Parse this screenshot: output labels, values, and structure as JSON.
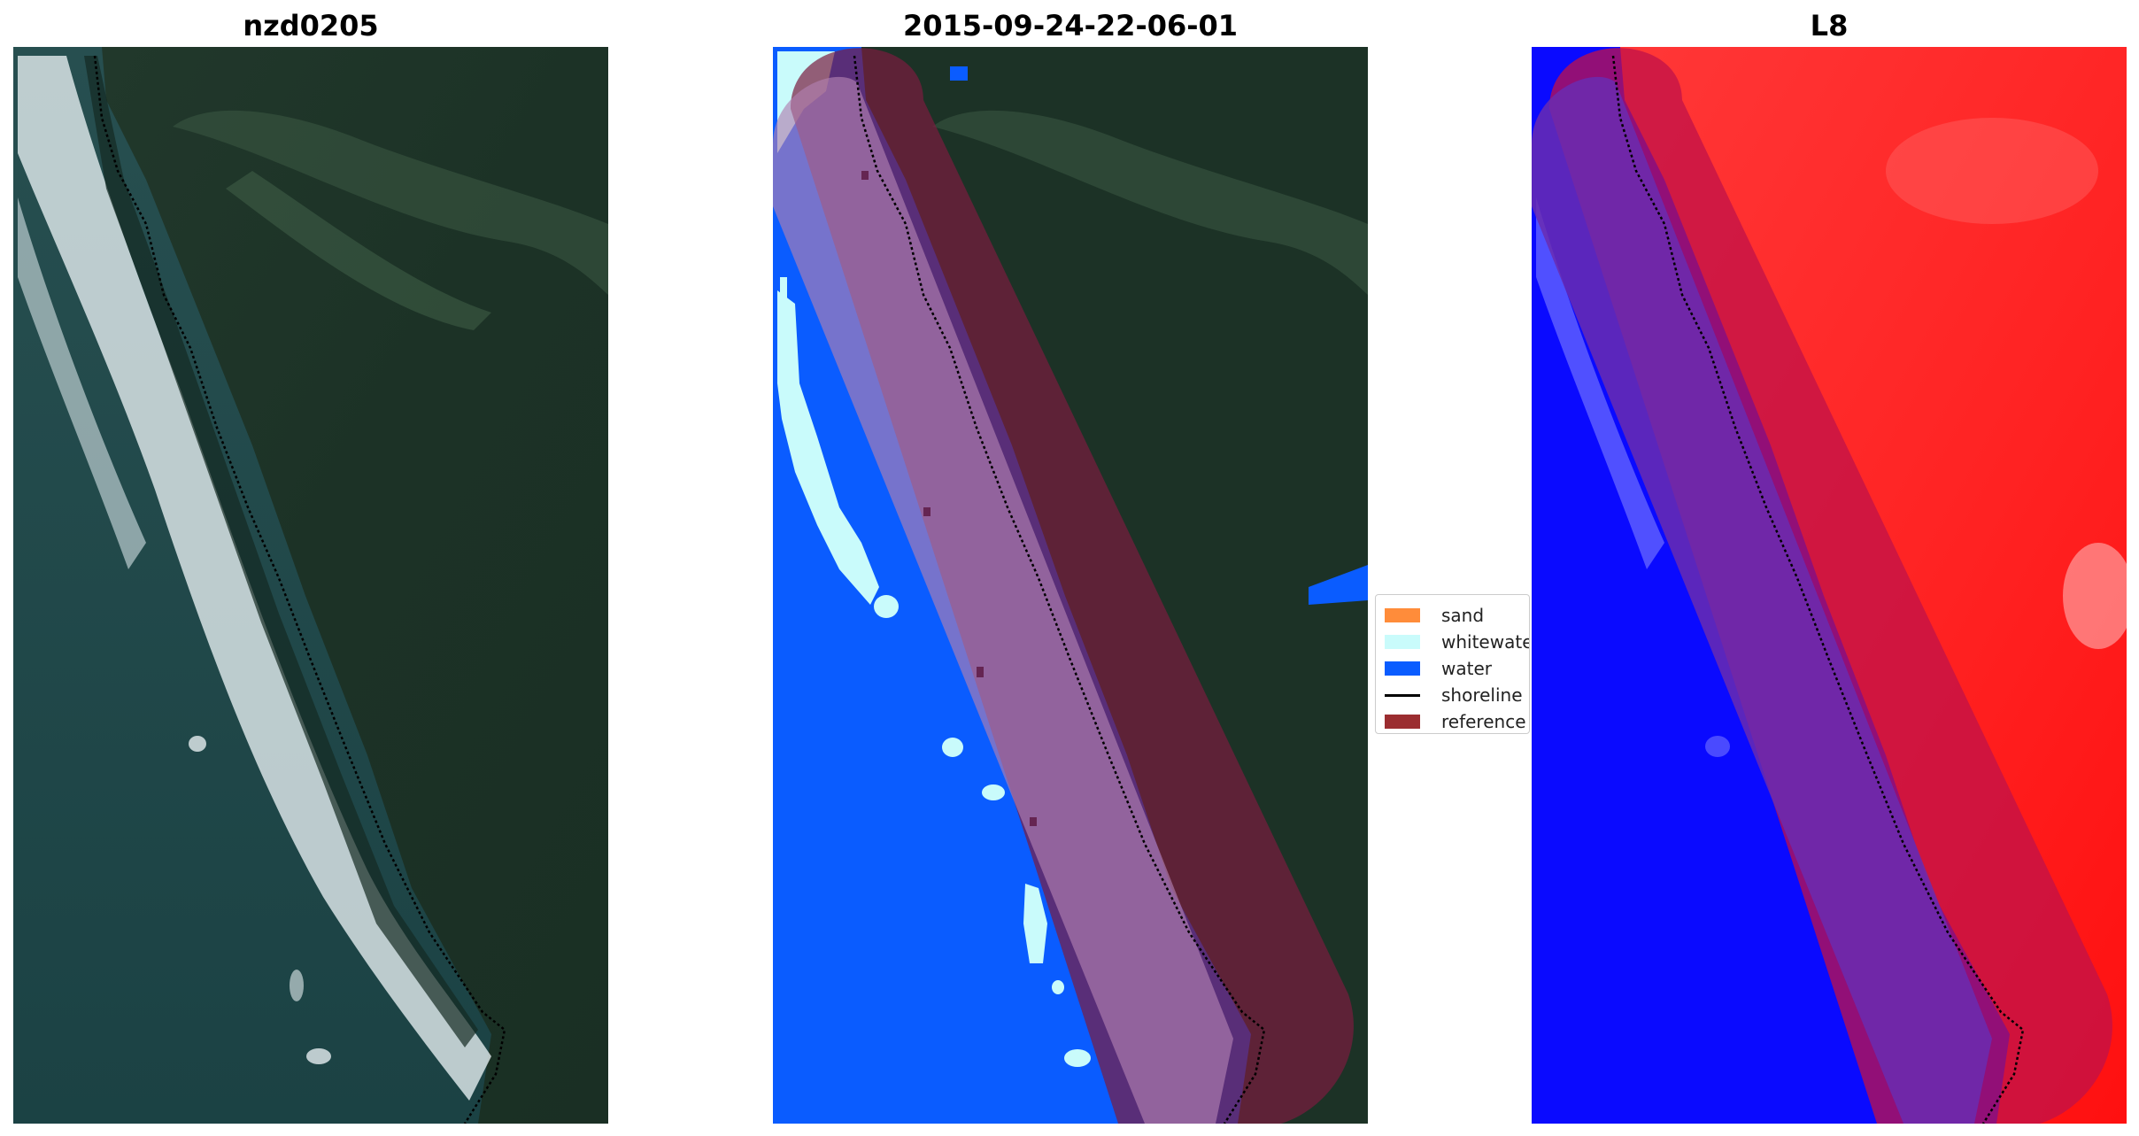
{
  "panels": [
    {
      "title": "nzd0205"
    },
    {
      "title": "2015-09-24-22-06-01"
    },
    {
      "title": "L8"
    }
  ],
  "legend": {
    "items": [
      {
        "label": "sand",
        "color": "#ff8c3a",
        "kind": "patch"
      },
      {
        "label": "whitewater",
        "color": "#c9fbfb",
        "kind": "patch"
      },
      {
        "label": "water",
        "color": "#0a5cff",
        "kind": "patch"
      },
      {
        "label": "shoreline",
        "color": "#000000",
        "kind": "line"
      },
      {
        "label": "reference shoreline buffer",
        "color": "#9b2d30",
        "kind": "patch"
      }
    ]
  },
  "colors": {
    "land": "#1d3326",
    "sea": "#1f4849",
    "surf": "#e6eef0",
    "classified_water": "#0a5cff",
    "classified_whitewater": "#c9fbfb",
    "buffer": "#9b2d30",
    "index_positive": "#ff2020",
    "index_negative": "#0a0aff"
  }
}
